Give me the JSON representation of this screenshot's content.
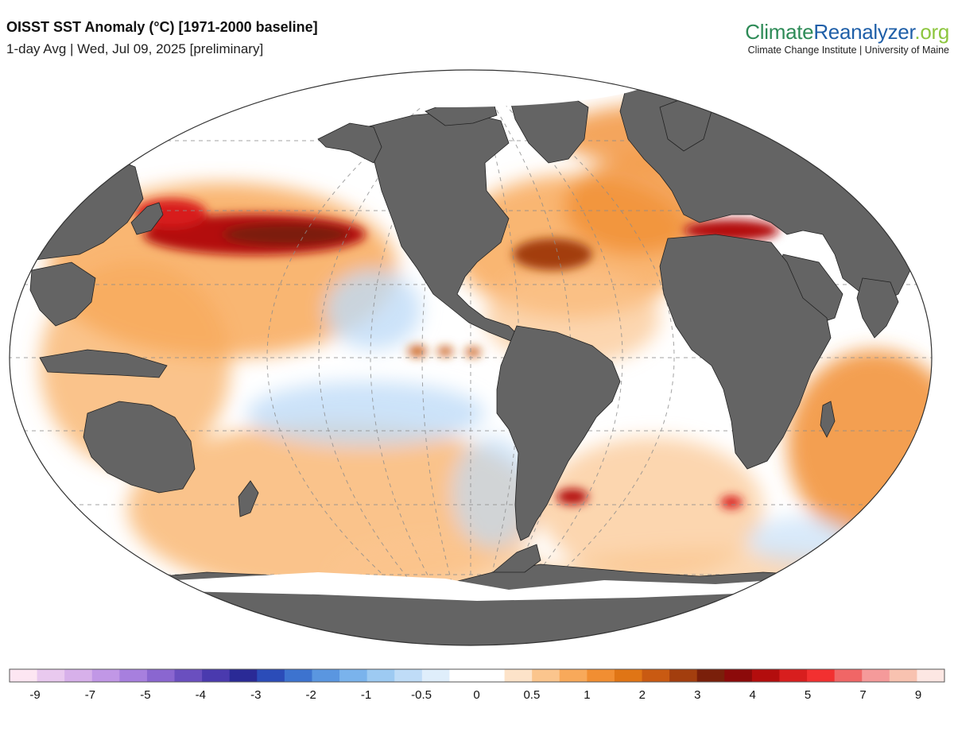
{
  "header": {
    "title": "OISST SST Anomaly (°C) [1971-2000 baseline]",
    "subtitle": "1-day Avg | Wed, Jul 09, 2025 [preliminary]"
  },
  "brand": {
    "part1": "Climate",
    "part2": "Reanalyzer",
    "part3": ".org",
    "subtitle": "Climate Change Institute | University of Maine"
  },
  "colors": {
    "land": "#646464",
    "ocean_neutral": "#ffffff",
    "graticule": "#8c8c8c",
    "brand_green": "#2e8b57",
    "brand_blue": "#1f5fa8",
    "brand_lightgreen": "#8dc63f"
  },
  "legend": {
    "bins": [
      {
        "color": "#fde6f2"
      },
      {
        "color": "#e9c9ef"
      },
      {
        "color": "#d7b0ea"
      },
      {
        "color": "#c197e6"
      },
      {
        "color": "#a77fde"
      },
      {
        "color": "#8a66d0"
      },
      {
        "color": "#6a4fbf"
      },
      {
        "color": "#4a3aae"
      },
      {
        "color": "#2a2a96"
      },
      {
        "color": "#2b4cb8"
      },
      {
        "color": "#3d73cf"
      },
      {
        "color": "#5a96e0"
      },
      {
        "color": "#7ab3ec"
      },
      {
        "color": "#9dcaf2"
      },
      {
        "color": "#bfdcf7"
      },
      {
        "color": "#dfeefb"
      },
      {
        "color": "#ffffff"
      },
      {
        "color": "#ffffff"
      },
      {
        "color": "#fde3c9"
      },
      {
        "color": "#fbc58d"
      },
      {
        "color": "#f8a95a"
      },
      {
        "color": "#f18e32"
      },
      {
        "color": "#e07515"
      },
      {
        "color": "#c95a12"
      },
      {
        "color": "#a33e0e"
      },
      {
        "color": "#7a1f0a"
      },
      {
        "color": "#8c0a0a"
      },
      {
        "color": "#b30d0d"
      },
      {
        "color": "#d81e1e"
      },
      {
        "color": "#f23030"
      },
      {
        "color": "#f06666"
      },
      {
        "color": "#f59a9a"
      },
      {
        "color": "#f8c2b0"
      },
      {
        "color": "#fde7e3"
      }
    ],
    "ticks": [
      "-9",
      "-7",
      "-5",
      "-4",
      "-3",
      "-2",
      "-1",
      "-0.5",
      "0",
      "0.5",
      "1",
      "2",
      "3",
      "4",
      "5",
      "7",
      "9"
    ]
  },
  "map_regions": [
    {
      "name": "north-pacific-warm-blob",
      "color": "#f8a95a"
    },
    {
      "name": "north-pacific-hot-core",
      "color": "#b30d0d"
    },
    {
      "name": "north-atlantic-hot-spot",
      "color": "#a33e0e"
    },
    {
      "name": "mediterranean-hot",
      "color": "#b30d0d"
    },
    {
      "name": "indian-ocean-warm",
      "color": "#f18e32"
    },
    {
      "name": "south-pacific-warm",
      "color": "#f8a95a"
    },
    {
      "name": "equatorial-pacific-cool",
      "color": "#bfdcf7"
    }
  ]
}
